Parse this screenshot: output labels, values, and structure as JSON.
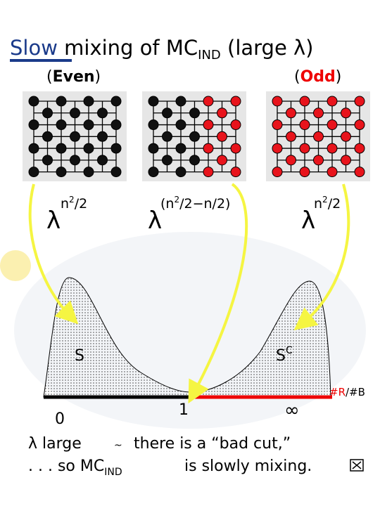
{
  "title": {
    "word": "Slow",
    "rest": "mixing of MC",
    "sub": "IND",
    "tail": "(large λ)"
  },
  "left_label": {
    "open": "(",
    "word": "Even",
    "close": ")"
  },
  "right_label": {
    "open": "(",
    "word": "Odd",
    "close": ")"
  },
  "weights": [
    {
      "base": "λ",
      "pre": "n",
      "sup": "2",
      "post": "/2"
    },
    {
      "base": "λ",
      "pre": "(n",
      "sup": "2",
      "post": "/2−n/2)"
    },
    {
      "base": "λ",
      "pre": "n",
      "sup": "2",
      "post": "/2"
    }
  ],
  "sets": {
    "left": "S",
    "right": "S",
    "right_sup": "C"
  },
  "axis": {
    "zero": "0",
    "one": "1",
    "inf": "∞",
    "ratio_r": "#R",
    "ratio_b": "/#B"
  },
  "footer": {
    "line1_a": "λ large",
    "line1_b": "~",
    "line1_c": "there is a “bad cut,”",
    "line2_a": ". . . so MC",
    "line2_sub": "IND",
    "line2_b": "is slowly mixing."
  }
}
